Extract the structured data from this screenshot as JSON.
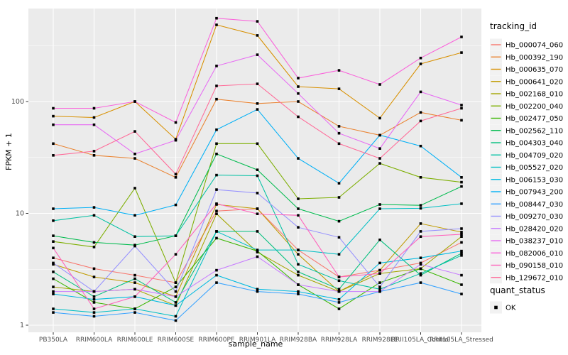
{
  "figure": {
    "background": "#FFFFFF",
    "panel_background": "#EBEBEB",
    "grid_color": "#FFFFFF",
    "tick_color": "#333333",
    "tick_label_color": "#4D4D4D",
    "point_color": "#000000"
  },
  "axes": {
    "x_label": "sample_name",
    "y_label": "FPKM + 1",
    "y_tick_labels": [
      "1",
      "10",
      "100"
    ]
  },
  "legend": {
    "tracking_title": "tracking_id",
    "quant_title": "quant_status",
    "quant_label": "OK"
  },
  "chart_data": {
    "type": "line",
    "title": "",
    "xlabel": "sample_name",
    "ylabel": "FPKM + 1",
    "y_scale": "log10",
    "y_ticks": [
      1,
      10,
      100
    ],
    "y_minor_ticks": [
      3.162,
      31.62,
      316.2
    ],
    "ylim": [
      1,
      700
    ],
    "grid": true,
    "legend_position": "right",
    "point_marker": "filled-square",
    "categories": [
      "PB350LA",
      "RRIM600LA",
      "RRIM600LE",
      "RRIM600SE",
      "RRIM600PE",
      "RRIM901LA",
      "RRIM928BA",
      "RRIM928LA",
      "RRIM928LE",
      "RRII105LA_Control",
      "RRII105LA_Stressed"
    ],
    "series": [
      {
        "name": "Hb_000074_060",
        "color": "#F8766D",
        "values": [
          4.0,
          3.2,
          2.8,
          2.4,
          10.5,
          11.0,
          4.7,
          2.7,
          3.1,
          3.6,
          5.5
        ]
      },
      {
        "name": "Hb_000392_190",
        "color": "#EA8331",
        "values": [
          42,
          33,
          31,
          21,
          105,
          96,
          100,
          60,
          50,
          80,
          68
        ]
      },
      {
        "name": "Hb_000635_070",
        "color": "#D89000",
        "values": [
          74,
          72,
          100,
          46,
          485,
          390,
          136,
          130,
          71,
          217,
          274
        ]
      },
      {
        "name": "Hb_000641_020",
        "color": "#C09B00",
        "values": [
          3.5,
          2.7,
          2.4,
          1.8,
          12.0,
          11.0,
          4.3,
          2.0,
          3.1,
          8.1,
          6.8
        ]
      },
      {
        "name": "Hb_002168_010",
        "color": "#A3A500",
        "values": [
          2.2,
          2.0,
          2.1,
          1.5,
          9.9,
          4.5,
          2.8,
          2.0,
          2.9,
          3.2,
          6.2
        ]
      },
      {
        "name": "Hb_002200_040",
        "color": "#7CAE00",
        "values": [
          5.6,
          5.0,
          16.8,
          2.4,
          42,
          42,
          13.5,
          13.9,
          28,
          21,
          19
        ]
      },
      {
        "name": "Hb_002477_050",
        "color": "#39B600",
        "values": [
          2.6,
          1.6,
          1.4,
          2.2,
          6.0,
          4.6,
          2.3,
          1.4,
          2.4,
          3.2,
          2.3
        ]
      },
      {
        "name": "Hb_002562_110",
        "color": "#00BB4E",
        "values": [
          6.3,
          5.5,
          5.2,
          6.3,
          34,
          24.5,
          11.0,
          8.5,
          12.0,
          11.8,
          17.4
        ]
      },
      {
        "name": "Hb_004303_040",
        "color": "#00BF7D",
        "values": [
          3.0,
          1.8,
          2.6,
          1.6,
          6.9,
          6.9,
          3.0,
          2.1,
          5.8,
          2.8,
          4.4
        ]
      },
      {
        "name": "Hb_004709_020",
        "color": "#00C1A3",
        "values": [
          8.6,
          9.6,
          6.2,
          6.3,
          22,
          21.7,
          3.5,
          2.5,
          2.1,
          2.9,
          4.2
        ]
      },
      {
        "name": "Hb_005527_020",
        "color": "#00BFC4",
        "values": [
          1.4,
          1.3,
          1.4,
          1.2,
          6.9,
          4.7,
          4.7,
          4.3,
          11.0,
          11.1,
          12.2
        ]
      },
      {
        "name": "Hb_006153_030",
        "color": "#00BAE0",
        "values": [
          1.9,
          1.7,
          1.8,
          1.5,
          2.8,
          2.1,
          2.0,
          1.7,
          3.6,
          4.0,
          4.6
        ]
      },
      {
        "name": "Hb_007943_200",
        "color": "#00B0F6",
        "values": [
          11.0,
          11.3,
          9.6,
          11.9,
          56,
          85,
          31,
          18.6,
          50,
          40,
          21
        ]
      },
      {
        "name": "Hb_008447_030",
        "color": "#35A2FF",
        "values": [
          1.3,
          1.2,
          1.3,
          1.1,
          2.4,
          2.0,
          1.9,
          1.6,
          2.0,
          2.4,
          1.9
        ]
      },
      {
        "name": "Hb_009270_030",
        "color": "#9590FF",
        "values": [
          3.6,
          2.0,
          5.1,
          2.0,
          16.3,
          15.2,
          7.5,
          6.1,
          2.2,
          6.9,
          7.3
        ]
      },
      {
        "name": "Hb_028420_020",
        "color": "#C77CFF",
        "values": [
          2.0,
          2.0,
          2.1,
          1.8,
          3.1,
          4.1,
          2.3,
          2.0,
          2.0,
          3.5,
          2.8
        ]
      },
      {
        "name": "Hb_038237_010",
        "color": "#E76BF3",
        "values": [
          62,
          62,
          34,
          45,
          208,
          262,
          118,
          52,
          38,
          122,
          93
        ]
      },
      {
        "name": "Hb_082006_010",
        "color": "#FA62DB",
        "values": [
          87,
          87,
          100,
          65,
          556,
          521,
          162,
          190,
          142,
          245,
          378
        ]
      },
      {
        "name": "Hb_090158_010",
        "color": "#FF62BC",
        "values": [
          4.9,
          1.4,
          1.8,
          4.3,
          12.2,
          9.9,
          9.6,
          2.7,
          2.9,
          6.2,
          6.5
        ]
      },
      {
        "name": "Hb_129672_010",
        "color": "#FF6A98",
        "values": [
          33,
          36,
          54,
          22.4,
          138,
          144,
          73,
          42,
          31,
          67,
          87
        ]
      }
    ],
    "quant_status": {
      "label": "OK",
      "marker": "filled-square",
      "color": "#000000"
    }
  }
}
